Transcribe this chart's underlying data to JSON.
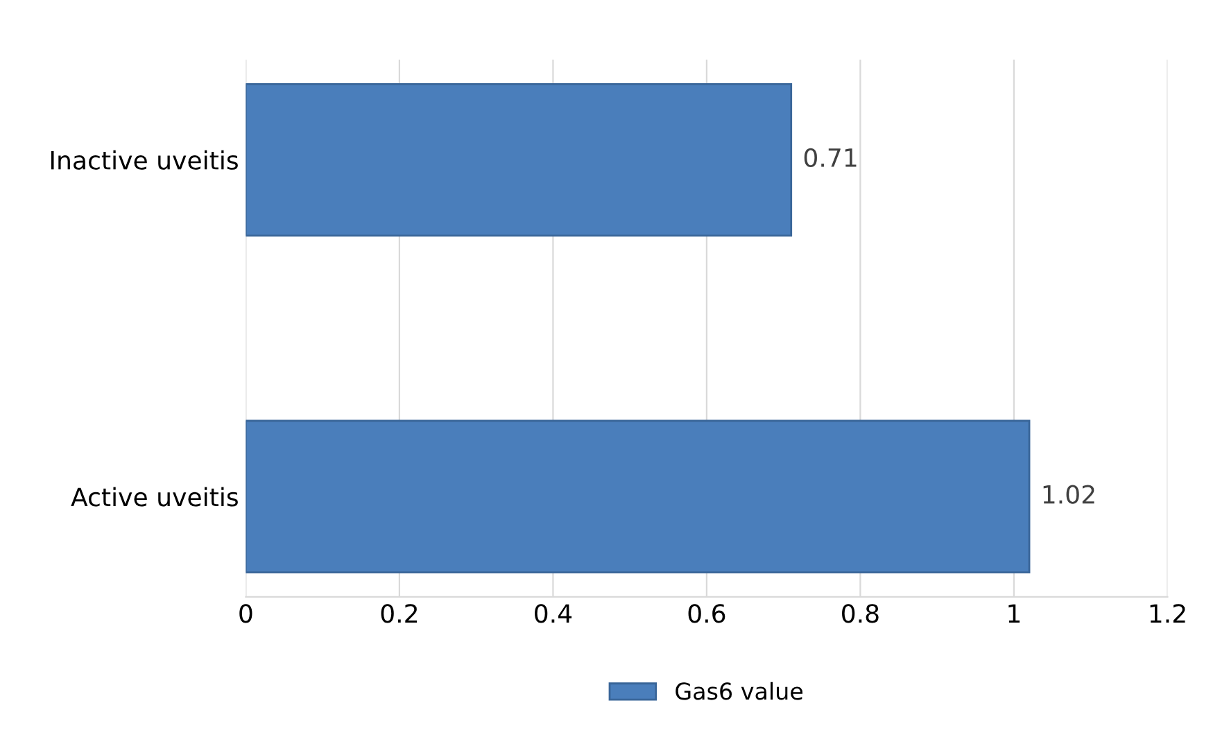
{
  "chart_data": {
    "type": "bar",
    "orientation": "horizontal",
    "categories": [
      "Inactive uveitis",
      "Active uveitis"
    ],
    "series": [
      {
        "name": "Gas6 value",
        "color": "#4a7ebb",
        "values": [
          0.71,
          1.02
        ]
      }
    ],
    "xlim": [
      0,
      1.2
    ],
    "xticks": [
      0,
      0.2,
      0.4,
      0.6,
      0.8,
      1,
      1.2
    ],
    "grid": "x",
    "legend": "bottom",
    "data_labels": true
  }
}
